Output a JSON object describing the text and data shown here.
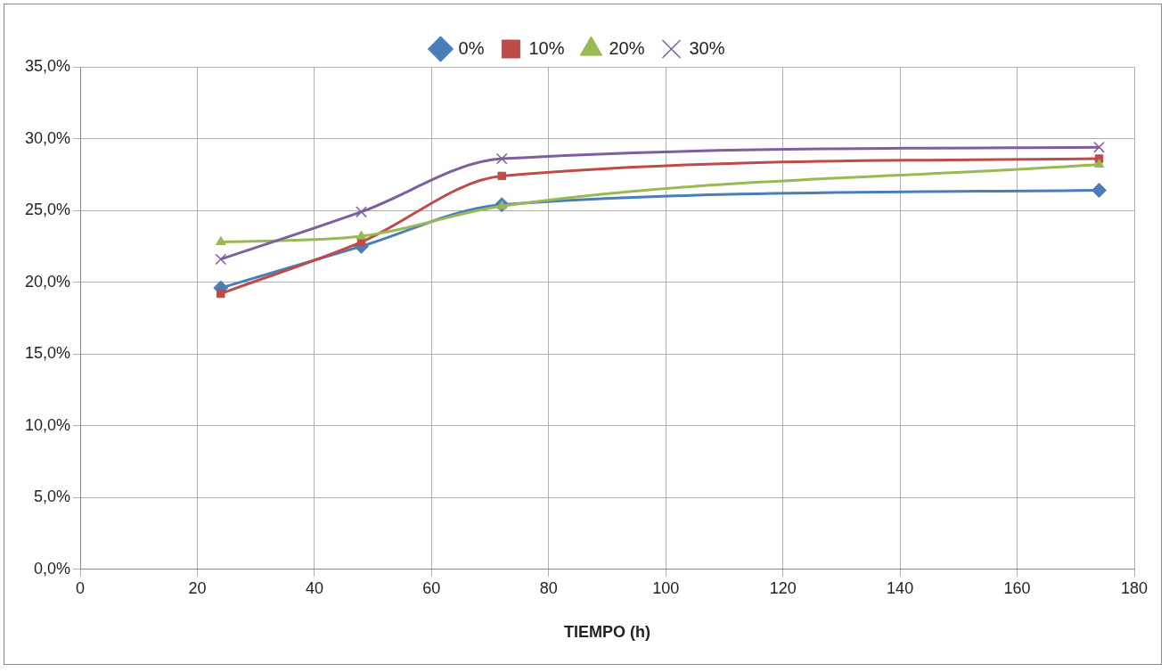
{
  "chart_data": {
    "type": "line",
    "xlabel": "TIEMPO (h)",
    "legend": "top",
    "grid": true,
    "line_style": "solid",
    "xlim": [
      0,
      180
    ],
    "xticks": [
      0,
      20,
      40,
      60,
      80,
      100,
      120,
      140,
      160,
      180
    ],
    "ylim": [
      0,
      35
    ],
    "yticks": [
      {
        "value": 0,
        "label": "0,0%"
      },
      {
        "value": 5,
        "label": "5,0%"
      },
      {
        "value": 10,
        "label": "10,0%"
      },
      {
        "value": 15,
        "label": "15,0%"
      },
      {
        "value": 20,
        "label": "20,0%"
      },
      {
        "value": 25,
        "label": "25,0%"
      },
      {
        "value": 30,
        "label": "30,0%"
      },
      {
        "value": 35,
        "label": "35,0%"
      }
    ],
    "x": [
      24,
      48,
      72,
      174
    ],
    "series": [
      {
        "name": "0%",
        "color": "#4a7ebb",
        "marker": "diamond",
        "values": [
          19.6,
          22.5,
          25.4,
          26.4
        ]
      },
      {
        "name": "10%",
        "color": "#be4b48",
        "marker": "square",
        "values": [
          19.2,
          22.8,
          27.4,
          28.6
        ]
      },
      {
        "name": "20%",
        "color": "#98b954",
        "marker": "triangle",
        "values": [
          22.8,
          23.2,
          25.3,
          28.2
        ]
      },
      {
        "name": "30%",
        "color": "#7d5fa0",
        "marker": "cross",
        "values": [
          21.6,
          24.9,
          28.6,
          29.4
        ]
      }
    ]
  }
}
